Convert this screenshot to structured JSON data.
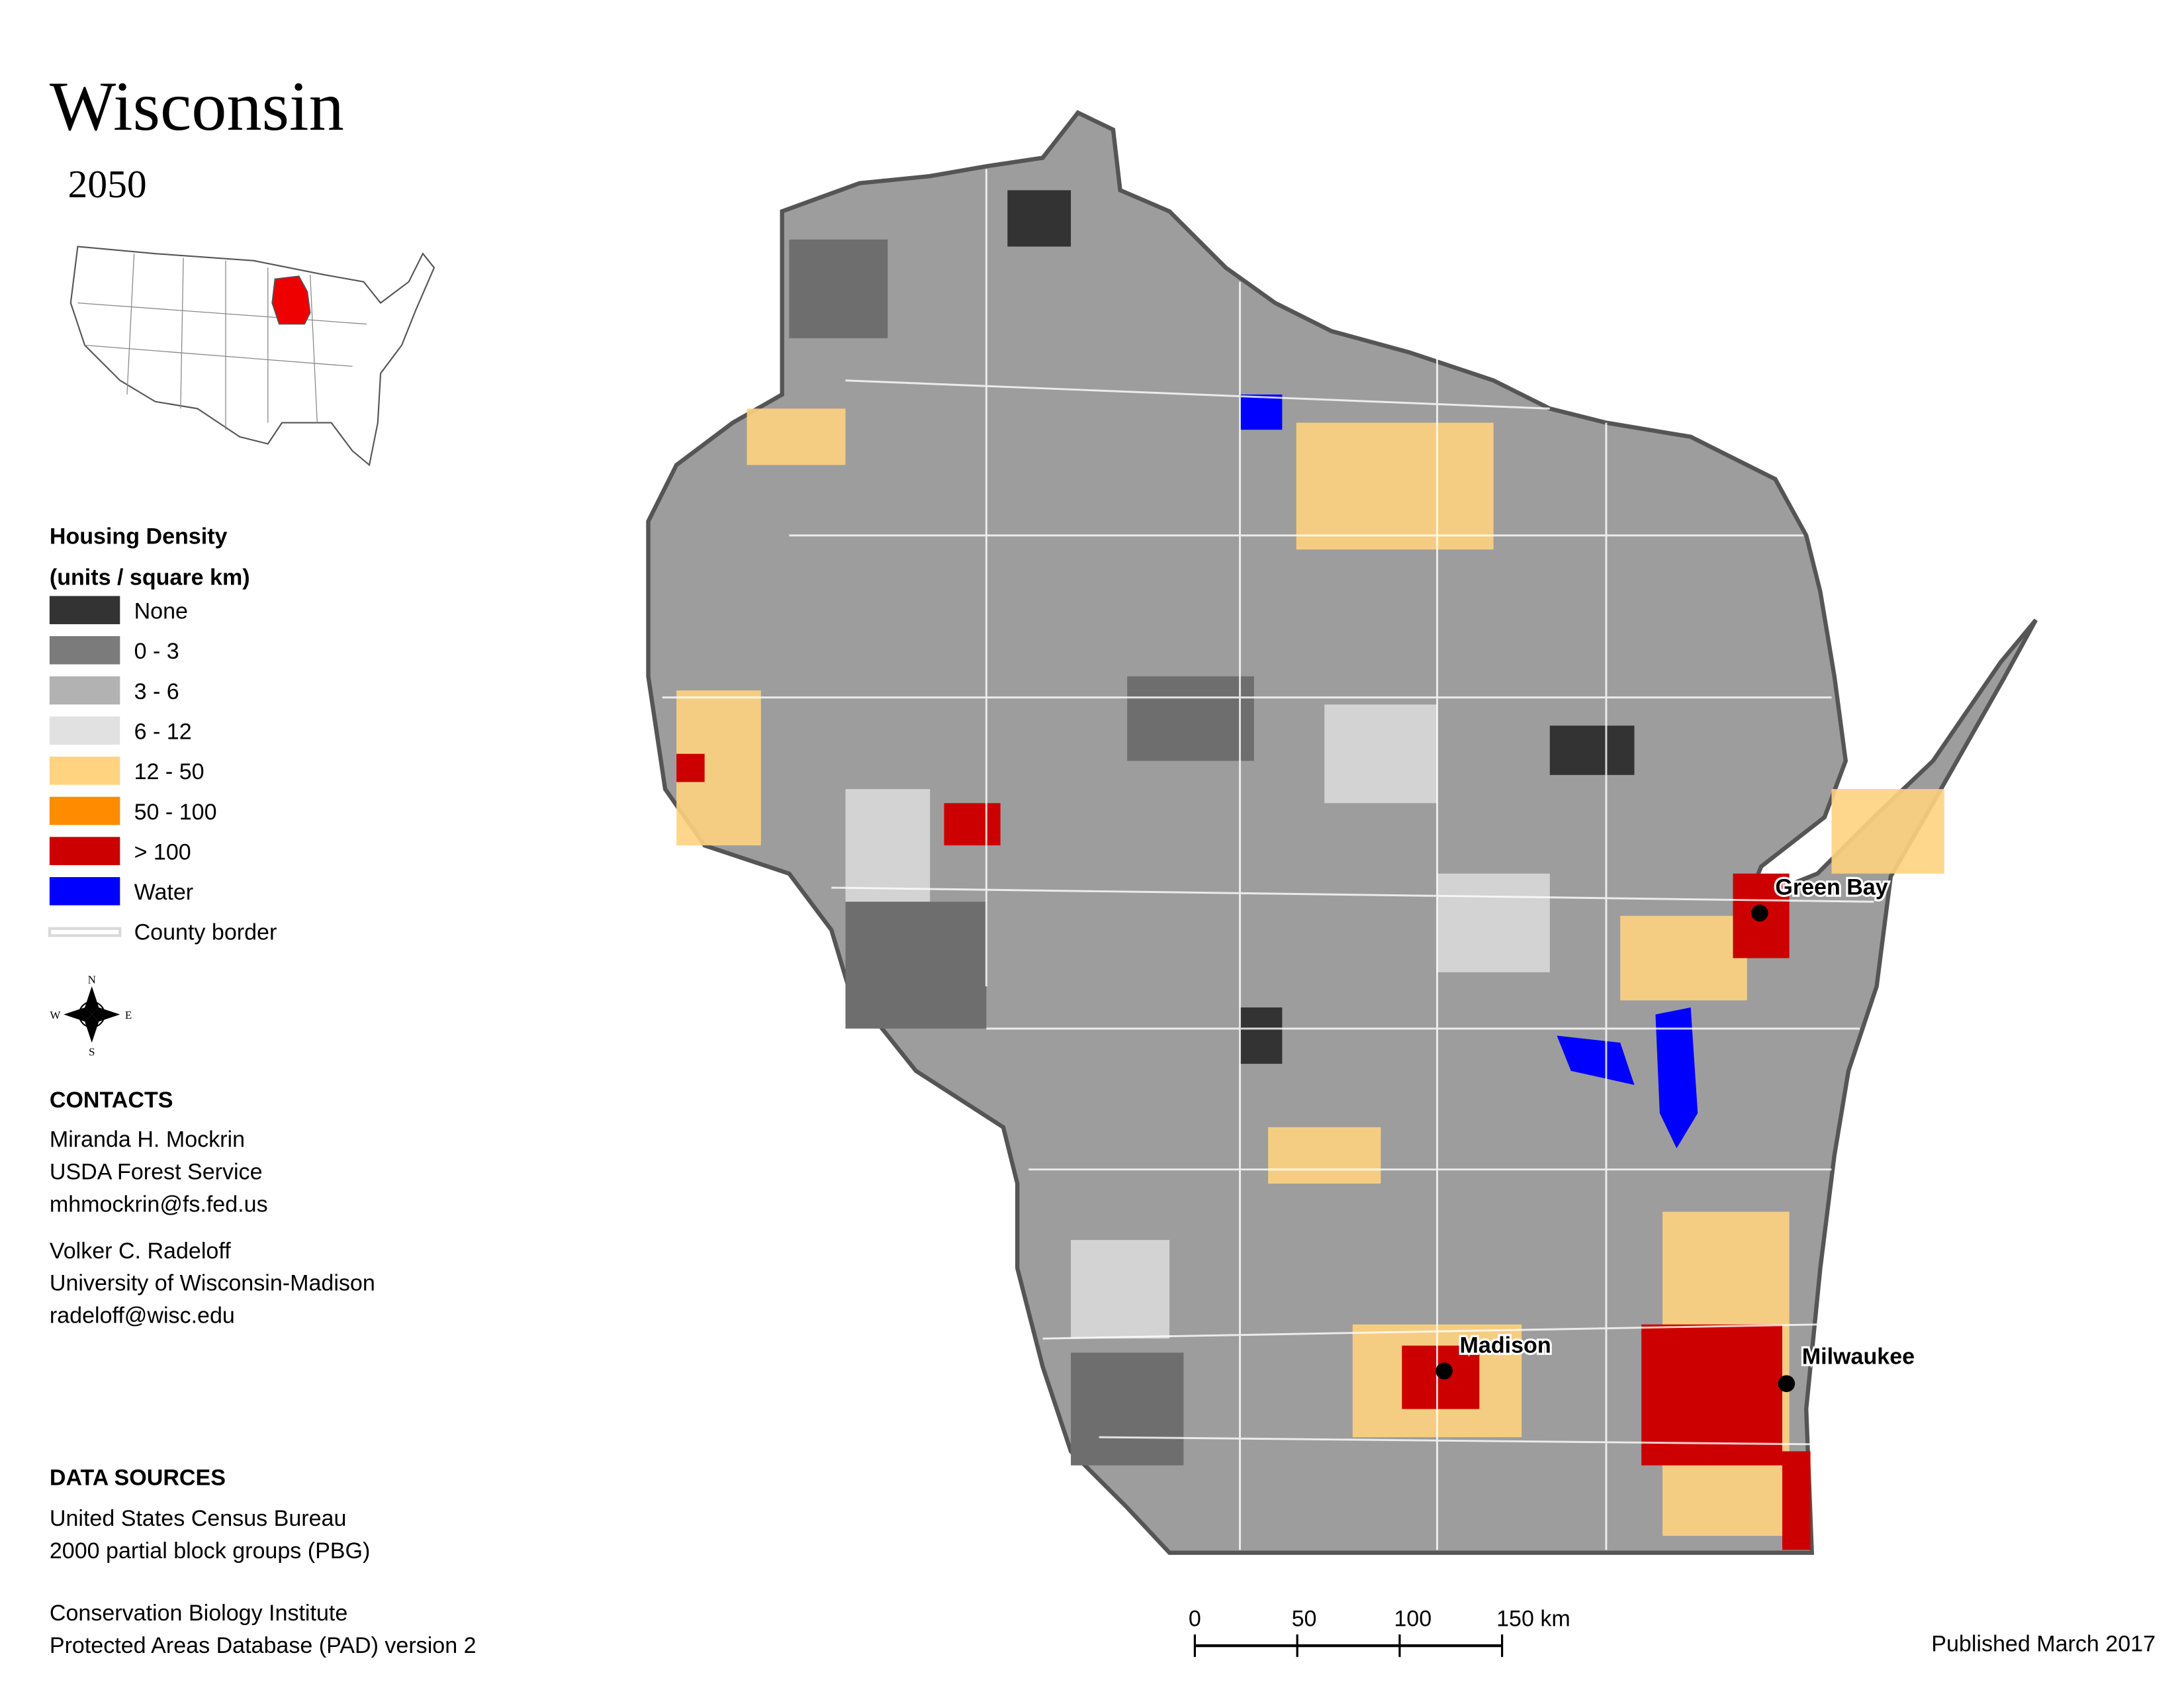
{
  "header": {
    "title": "Wisconsin",
    "subtitle": "2050"
  },
  "legend": {
    "title_lines": [
      "Housing Density",
      "(units / square km)"
    ],
    "items": [
      {
        "label": "None",
        "color": "#333333"
      },
      {
        "label": "0 - 3",
        "color": "#7b7b7b"
      },
      {
        "label": "3 - 6",
        "color": "#b2b2b2"
      },
      {
        "label": "6 - 12",
        "color": "#e1e1e1"
      },
      {
        "label": "12 - 50",
        "color": "#ffd37f"
      },
      {
        "label": "50 - 100",
        "color": "#ff8c00"
      },
      {
        "label": "> 100",
        "color": "#cc0000"
      },
      {
        "label": "Water",
        "color": "#0000ff"
      },
      {
        "label": "County border",
        "color": "#d9d9d9"
      }
    ]
  },
  "compass": {
    "north": "N",
    "east": "E",
    "south": "S",
    "west": "W"
  },
  "contacts": {
    "heading": "CONTACTS",
    "people": [
      [
        "Miranda H. Mockrin",
        "USDA Forest Service",
        "mhmockrin@fs.fed.us"
      ],
      [
        "Volker C. Radeloff",
        "University of Wisconsin-Madison",
        "radeloff@wisc.edu"
      ]
    ]
  },
  "data_sources": {
    "heading": "DATA SOURCES",
    "sources": [
      [
        "United States Census Bureau",
        "2000 partial block groups (PBG)"
      ],
      [
        "Conservation Biology Institute",
        "Protected Areas Database (PAD) version 2"
      ]
    ]
  },
  "cities": [
    "Green Bay",
    "Madison",
    "Milwaukee"
  ],
  "scale_bar": {
    "labels": [
      "0",
      "50",
      "100",
      "150 km"
    ]
  },
  "footer": {
    "published": "Published March 2017"
  }
}
